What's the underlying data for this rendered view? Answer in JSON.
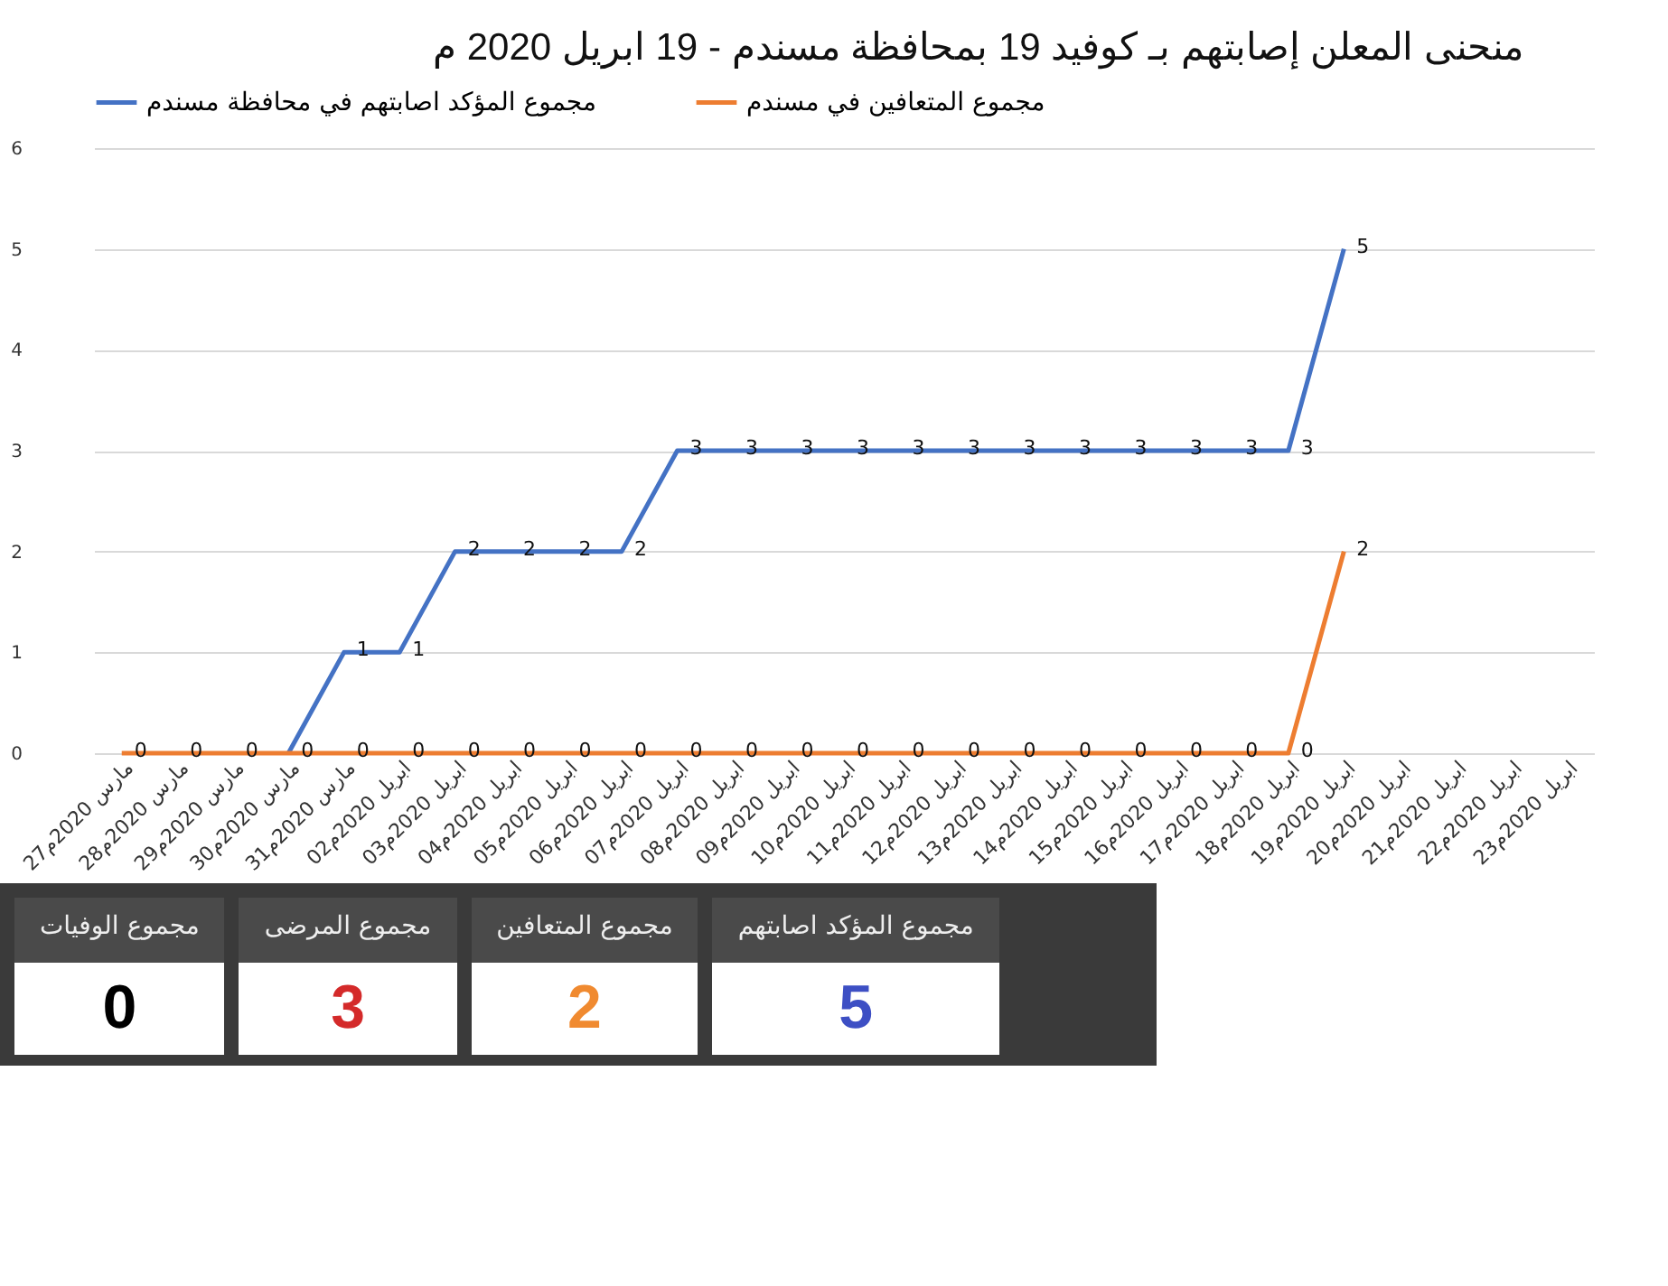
{
  "chart_data": {
    "type": "line",
    "title": "منحنى المعلن إصابتهم بـ كوفيد 19 بمحافظة مسندم - 19 ابريل 2020 م",
    "categories": [
      "27مارس 2020م",
      "28مارس 2020م",
      "29مارس 2020م",
      "30مارس 2020م",
      "31مارس 2020م",
      "02ابريل 2020م",
      "03ابريل 2020م",
      "04ابريل 2020م",
      "05ابريل 2020م",
      "06ابريل 2020م",
      "07ابريل 2020م",
      "08ابريل 2020م",
      "09ابريل 2020م",
      "10ابريل 2020م",
      "11ابريل 2020م",
      "12ابريل 2020م",
      "13ابريل 2020م",
      "14ابريل 2020م",
      "15ابريل 2020م",
      "16ابريل 2020م",
      "17ابريل 2020م",
      "18ابريل 2020م",
      "19ابريل 2020م",
      "20ابريل 2020م",
      "21ابريل 2020م",
      "22ابريل 2020م",
      "23ابريل 2020م"
    ],
    "series": [
      {
        "name": "مجموع المؤكد اصابتهم في محافظة مسندم",
        "color": "#4472c4",
        "values": [
          null,
          null,
          null,
          0,
          1,
          1,
          2,
          2,
          2,
          2,
          3,
          3,
          3,
          3,
          3,
          3,
          3,
          3,
          3,
          3,
          3,
          3,
          5,
          null,
          null,
          null,
          null
        ],
        "value_labels": [
          null,
          null,
          null,
          null,
          "1",
          "1",
          "2",
          "2",
          "2",
          "2",
          "3",
          "3",
          "3",
          "3",
          "3",
          "3",
          "3",
          "3",
          "3",
          "3",
          "3",
          "3",
          "5",
          null,
          null,
          null,
          null
        ]
      },
      {
        "name": "مجموع المتعافين في مسندم",
        "color": "#ed7d31",
        "values": [
          0,
          0,
          0,
          0,
          0,
          0,
          0,
          0,
          0,
          0,
          0,
          0,
          0,
          0,
          0,
          0,
          0,
          0,
          0,
          0,
          0,
          0,
          2,
          null,
          null,
          null,
          null
        ]
      }
    ],
    "ylim": [
      0,
      6
    ],
    "yticks": [
      0,
      1,
      2,
      3,
      4,
      5,
      6
    ],
    "grid": "y",
    "legend": "top",
    "data_labels": true,
    "marker": "none",
    "line_style": "solid",
    "annotations": [
      "مجموع المؤكد اصابتهم",
      "5",
      "مجموع المتعافين",
      "2",
      "مجموع المرضى",
      "3",
      "مجموع الوفيات",
      "0"
    ]
  }
}
